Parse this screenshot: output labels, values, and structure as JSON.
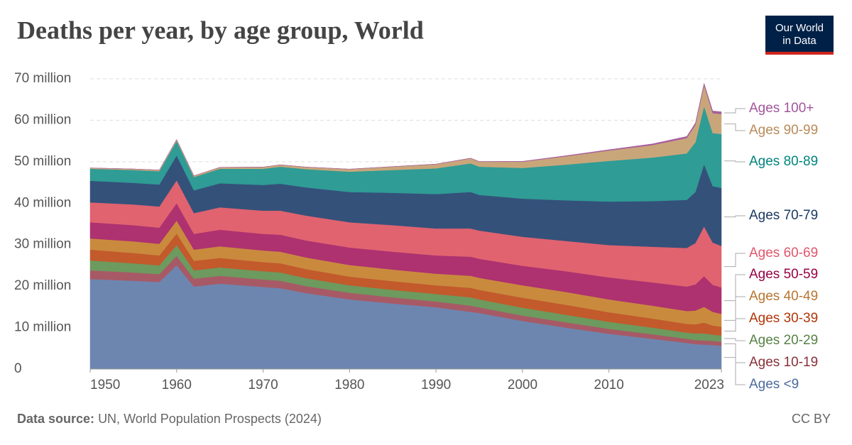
{
  "chart_data": {
    "type": "stacked-area",
    "title": "Deaths per year, by age group, World",
    "source_label": "Data source:",
    "source": "UN, World Population Prospects (2024)",
    "license": "CC BY",
    "logo": [
      "Our World",
      "in Data"
    ],
    "x": [
      1950,
      1955,
      1958,
      1960,
      1962,
      1965,
      1970,
      1972,
      1975,
      1980,
      1985,
      1990,
      1994,
      1995,
      2000,
      2005,
      2010,
      2015,
      2019,
      2020,
      2021,
      2022,
      2023
    ],
    "xlim": [
      1950,
      2023
    ],
    "xticks": [
      1950,
      1960,
      1970,
      1980,
      1990,
      2000,
      2010,
      2023
    ],
    "ylim": [
      0,
      70
    ],
    "yticks": [
      0,
      {
        "value": 10,
        "label": "10 million"
      },
      {
        "value": 20,
        "label": "20 million"
      },
      {
        "value": 30,
        "label": "30 million"
      },
      {
        "value": 40,
        "label": "40 million"
      },
      {
        "value": 50,
        "label": "50 million"
      },
      {
        "value": 60,
        "label": "60 million"
      },
      {
        "value": 70,
        "label": "70 million"
      }
    ],
    "grid": true,
    "series": [
      {
        "name": "Ages <9",
        "color": "#6d86b0",
        "label_color": "#4c6a9c",
        "values": [
          21.7,
          21.3,
          21.0,
          25.0,
          19.9,
          20.6,
          19.8,
          19.5,
          18.3,
          16.8,
          15.8,
          14.9,
          13.8,
          13.5,
          11.6,
          10.0,
          8.5,
          7.3,
          6.3,
          6.0,
          5.9,
          5.8,
          5.6
        ]
      },
      {
        "name": "Ages 10-19",
        "color": "#a75a66",
        "label_color": "#883039",
        "values": [
          2.1,
          2.0,
          1.9,
          2.3,
          1.9,
          1.9,
          1.8,
          1.8,
          1.7,
          1.6,
          1.5,
          1.4,
          1.5,
          1.4,
          1.3,
          1.3,
          1.2,
          1.1,
          1.0,
          1.0,
          1.0,
          1.0,
          1.0
        ]
      },
      {
        "name": "Ages 20-29",
        "color": "#6d9a5e",
        "label_color": "#578145",
        "values": [
          2.4,
          2.2,
          2.1,
          2.6,
          2.0,
          2.0,
          2.0,
          2.0,
          1.9,
          1.8,
          1.8,
          1.8,
          2.0,
          1.9,
          1.9,
          1.8,
          1.7,
          1.6,
          1.5,
          1.6,
          1.7,
          1.5,
          1.5
        ]
      },
      {
        "name": "Ages 30-39",
        "color": "#c25a2c",
        "label_color": "#b13507",
        "values": [
          2.6,
          2.5,
          2.4,
          2.8,
          2.3,
          2.3,
          2.2,
          2.2,
          2.2,
          2.1,
          2.1,
          2.1,
          2.3,
          2.3,
          2.4,
          2.4,
          2.3,
          2.2,
          2.1,
          2.2,
          2.6,
          2.2,
          2.1
        ]
      },
      {
        "name": "Ages 40-49",
        "color": "#c98a3e",
        "label_color": "#b8752f",
        "values": [
          2.7,
          2.8,
          2.8,
          3.1,
          2.7,
          2.8,
          2.8,
          2.8,
          2.8,
          2.8,
          2.8,
          2.8,
          2.9,
          2.9,
          3.0,
          3.1,
          3.1,
          3.1,
          3.1,
          3.3,
          3.8,
          3.3,
          3.1
        ]
      },
      {
        "name": "Ages 50-59",
        "color": "#ae3170",
        "label_color": "#970046",
        "values": [
          3.9,
          3.9,
          3.9,
          4.2,
          3.8,
          4.0,
          4.0,
          4.1,
          4.1,
          4.2,
          4.3,
          4.4,
          4.6,
          4.6,
          4.7,
          5.0,
          5.3,
          5.6,
          5.9,
          6.3,
          7.4,
          6.5,
          6.4
        ]
      },
      {
        "name": "Ages 60-69",
        "color": "#e0636f",
        "label_color": "#e0556b",
        "values": [
          4.8,
          5.0,
          5.1,
          5.5,
          5.0,
          5.4,
          5.6,
          5.8,
          6.0,
          6.1,
          6.4,
          6.5,
          6.8,
          6.8,
          7.0,
          7.3,
          7.8,
          8.6,
          9.3,
          10.0,
          12.0,
          10.2,
          10.0
        ]
      },
      {
        "name": "Ages 70-79",
        "color": "#34517a",
        "label_color": "#18375f",
        "values": [
          5.2,
          5.2,
          5.3,
          6.0,
          5.5,
          5.8,
          6.2,
          6.5,
          6.8,
          7.3,
          7.8,
          8.3,
          8.8,
          8.6,
          9.2,
          9.8,
          10.5,
          11.0,
          11.6,
          12.3,
          15.0,
          13.6,
          14.0
        ]
      },
      {
        "name": "Ages 80-89",
        "color": "#2f9c95",
        "label_color": "#00847e",
        "values": [
          2.9,
          3.1,
          3.2,
          3.5,
          3.2,
          3.5,
          3.9,
          4.1,
          4.4,
          4.9,
          5.5,
          6.2,
          6.9,
          6.8,
          7.4,
          8.6,
          9.8,
          10.5,
          11.2,
          12.0,
          14.0,
          12.8,
          13.0
        ]
      },
      {
        "name": "Ages 90-99",
        "color": "#c9a67a",
        "label_color": "#b88a5a",
        "values": [
          0.2,
          0.25,
          0.3,
          0.35,
          0.3,
          0.35,
          0.4,
          0.45,
          0.5,
          0.6,
          0.8,
          1.0,
          1.2,
          1.2,
          1.5,
          2.0,
          2.5,
          3.0,
          3.7,
          4.2,
          5.0,
          4.8,
          4.8
        ]
      },
      {
        "name": "Ages 100+",
        "color": "#a8609c",
        "label_color": "#a2559c",
        "values": [
          0.01,
          0.01,
          0.01,
          0.01,
          0.01,
          0.01,
          0.01,
          0.02,
          0.02,
          0.03,
          0.04,
          0.05,
          0.07,
          0.07,
          0.1,
          0.15,
          0.2,
          0.3,
          0.4,
          0.45,
          0.5,
          0.55,
          0.55
        ]
      }
    ]
  }
}
